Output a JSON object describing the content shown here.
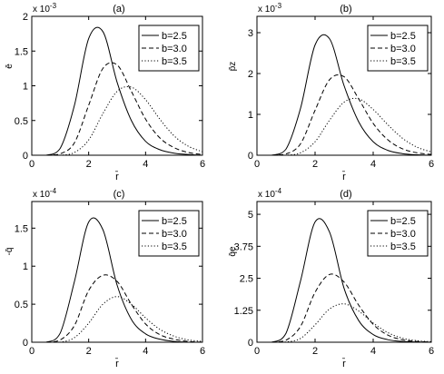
{
  "figure": {
    "background": "#ffffff",
    "line_color": "#000000"
  },
  "chart_data": [
    {
      "type": "line",
      "panel_label": "(a)",
      "xlabel": "r̄",
      "ylabel": "ē",
      "multiplier_base": "x 10",
      "multiplier_exp": "-3",
      "xlim": [
        0,
        6
      ],
      "ylim": [
        0,
        2
      ],
      "xticks": [
        0,
        2,
        4,
        6
      ],
      "yticks": [
        0,
        0.5,
        1,
        1.5,
        2
      ],
      "ytick_labels": [
        "0",
        "0.5",
        "1",
        "1.5",
        "2"
      ],
      "x": [
        0.5,
        1,
        1.5,
        2,
        2.5,
        3,
        3.5,
        4,
        4.5,
        5,
        5.5,
        6
      ],
      "series": [
        {
          "name": "b=2.5",
          "style": "solid",
          "values": [
            0.0,
            0.1,
            0.72,
            1.68,
            1.78,
            1.05,
            0.5,
            0.2,
            0.08,
            0.03,
            0.01,
            0.0
          ]
        },
        {
          "name": "b=3.0",
          "style": "dashed",
          "values": [
            0.0,
            0.02,
            0.18,
            0.72,
            1.25,
            1.3,
            0.92,
            0.52,
            0.25,
            0.11,
            0.04,
            0.01
          ]
        },
        {
          "name": "b=3.5",
          "style": "dotted",
          "values": [
            0.0,
            0.0,
            0.04,
            0.22,
            0.6,
            0.92,
            0.98,
            0.8,
            0.52,
            0.28,
            0.13,
            0.05
          ]
        }
      ],
      "legend_position": "top-right"
    },
    {
      "type": "line",
      "panel_label": "(b)",
      "xlabel": "r̄",
      "ylabel": "p̄z",
      "multiplier_base": "x 10",
      "multiplier_exp": "-3",
      "xlim": [
        0,
        6
      ],
      "ylim": [
        0,
        3.4
      ],
      "xticks": [
        0,
        2,
        4,
        6
      ],
      "yticks": [
        0,
        1,
        2,
        3
      ],
      "ytick_labels": [
        "0",
        "1",
        "2",
        "3"
      ],
      "x": [
        0.5,
        1,
        1.5,
        2,
        2.5,
        3,
        3.5,
        4,
        4.5,
        5,
        5.5,
        6
      ],
      "series": [
        {
          "name": "b=2.5",
          "style": "solid",
          "values": [
            0.0,
            0.15,
            1.15,
            2.7,
            2.85,
            1.7,
            0.82,
            0.33,
            0.12,
            0.04,
            0.01,
            0.0
          ]
        },
        {
          "name": "b=3.0",
          "style": "dashed",
          "values": [
            0.0,
            0.03,
            0.28,
            1.1,
            1.85,
            1.92,
            1.38,
            0.78,
            0.38,
            0.16,
            0.06,
            0.02
          ]
        },
        {
          "name": "b=3.5",
          "style": "dotted",
          "values": [
            0.0,
            0.0,
            0.06,
            0.33,
            0.86,
            1.3,
            1.38,
            1.12,
            0.75,
            0.42,
            0.2,
            0.08
          ]
        }
      ],
      "legend_position": "top-right"
    },
    {
      "type": "line",
      "panel_label": "(c)",
      "xlabel": "r̄",
      "ylabel": "-q̄",
      "multiplier_base": "x 10",
      "multiplier_exp": "-4",
      "xlim": [
        0,
        6
      ],
      "ylim": [
        0,
        1.85
      ],
      "xticks": [
        0,
        2,
        4,
        6
      ],
      "yticks": [
        0,
        0.5,
        1,
        1.5
      ],
      "ytick_labels": [
        "0",
        "0.5",
        "1",
        "1.5"
      ],
      "x": [
        0.5,
        1,
        1.5,
        2,
        2.5,
        3,
        3.5,
        4,
        4.5,
        5,
        5.5,
        6
      ],
      "series": [
        {
          "name": "b=2.5",
          "style": "solid",
          "values": [
            0.0,
            0.12,
            0.8,
            1.58,
            1.48,
            0.75,
            0.3,
            0.11,
            0.04,
            0.01,
            0.0,
            0.0
          ]
        },
        {
          "name": "b=3.0",
          "style": "dashed",
          "values": [
            0.0,
            0.03,
            0.22,
            0.68,
            0.88,
            0.8,
            0.5,
            0.24,
            0.1,
            0.04,
            0.01,
            0.0
          ]
        },
        {
          "name": "b=3.5",
          "style": "dotted",
          "values": [
            0.0,
            0.0,
            0.06,
            0.25,
            0.5,
            0.6,
            0.5,
            0.32,
            0.17,
            0.08,
            0.03,
            0.01
          ]
        }
      ],
      "legend_position": "top-right"
    },
    {
      "type": "line",
      "panel_label": "(d)",
      "xlabel": "r̄",
      "ylabel": "q̄e",
      "multiplier_base": "x 10",
      "multiplier_exp": "-4",
      "xlim": [
        0,
        6
      ],
      "ylim": [
        0,
        5.5
      ],
      "xticks": [
        0,
        2,
        4,
        6
      ],
      "yticks": [
        0,
        1.25,
        2.5,
        3.75,
        5
      ],
      "ytick_labels": [
        "0",
        "1.25",
        "2.5",
        "3.75",
        "5"
      ],
      "x": [
        0.5,
        1,
        1.5,
        2,
        2.5,
        3,
        3.5,
        4,
        4.5,
        5,
        5.5,
        6
      ],
      "series": [
        {
          "name": "b=2.5",
          "style": "solid",
          "values": [
            0.0,
            0.35,
            2.4,
            4.7,
            4.3,
            2.1,
            0.85,
            0.3,
            0.1,
            0.03,
            0.01,
            0.0
          ]
        },
        {
          "name": "b=3.0",
          "style": "dashed",
          "values": [
            0.0,
            0.08,
            0.62,
            1.95,
            2.65,
            2.35,
            1.45,
            0.7,
            0.28,
            0.1,
            0.03,
            0.01
          ]
        },
        {
          "name": "b=3.5",
          "style": "dotted",
          "values": [
            0.0,
            0.01,
            0.15,
            0.68,
            1.3,
            1.5,
            1.22,
            0.75,
            0.38,
            0.16,
            0.06,
            0.02
          ]
        }
      ],
      "legend_position": "top-right"
    }
  ]
}
